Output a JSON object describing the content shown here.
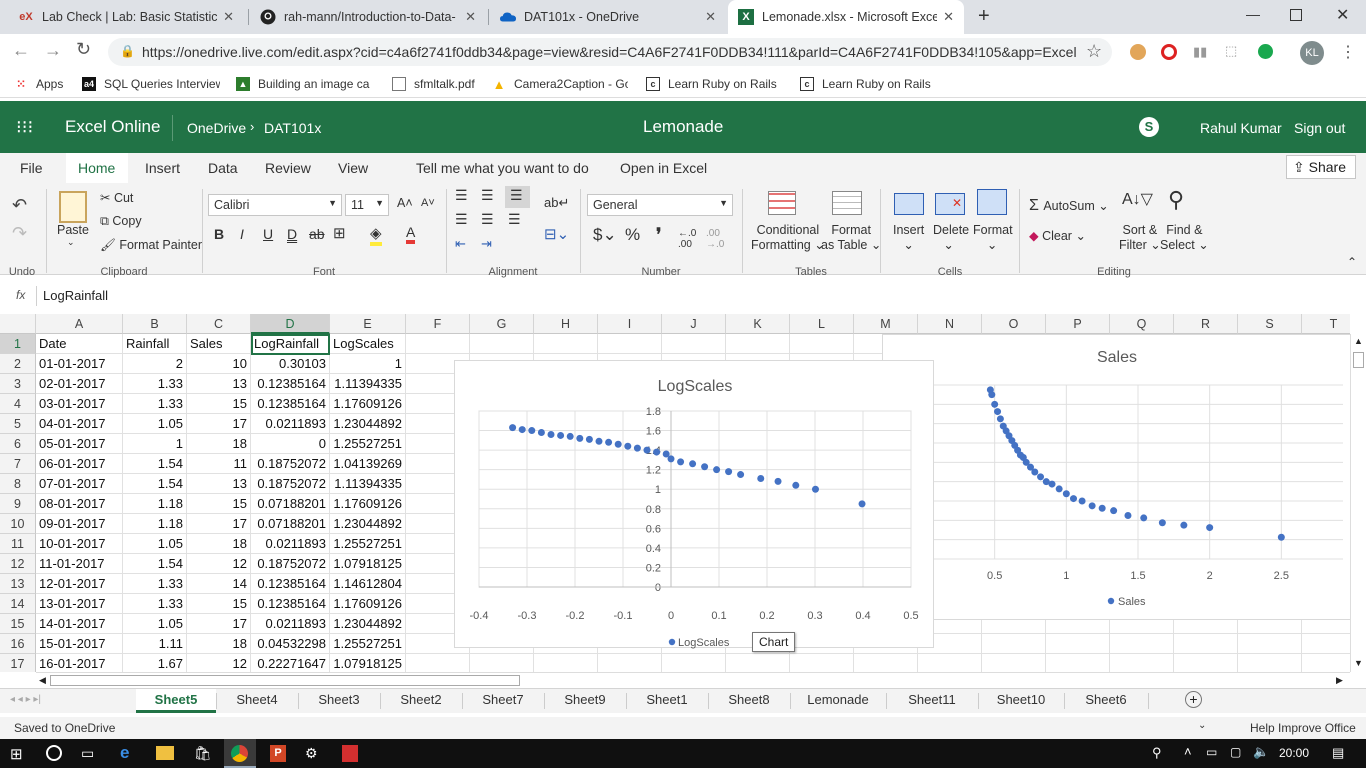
{
  "browser": {
    "tabs": [
      {
        "title": "Lab Check | Lab: Basic Statistical A",
        "icon": "edx-icon"
      },
      {
        "title": "rah-mann/Introduction-to-Data-",
        "icon": "github-icon"
      },
      {
        "title": "DAT101x - OneDrive",
        "icon": "onedrive-icon"
      },
      {
        "title": "Lemonade.xlsx - Microsoft Excel O",
        "icon": "excel-icon"
      }
    ],
    "url": "https://onedrive.live.com/edit.aspx?cid=c4a6f2741f0ddb34&page=view&resid=C4A6F2741F0DDB34!111&parId=C4A6F2741F0DDB34!105&app=Excel",
    "profile_initials": "KL",
    "bookmarks": [
      "Apps",
      "SQL Queries Interview",
      "Building an image ca",
      "sfmltalk.pdf",
      "Camera2Caption - Go",
      "Learn Ruby on Rails",
      "Learn Ruby on Rails"
    ]
  },
  "excel": {
    "app_name": "Excel Online",
    "breadcrumb_root": "OneDrive",
    "breadcrumb_folder": "DAT101x",
    "doc_title": "Lemonade",
    "user_name": "Rahul Kumar",
    "sign_out": "Sign out",
    "ribbon_tabs": [
      "File",
      "Home",
      "Insert",
      "Data",
      "Review",
      "View",
      "Tell me what you want to do",
      "Open in Excel"
    ],
    "share": "Share",
    "ribbon": {
      "cut": "Cut",
      "copy": "Copy",
      "format_painter": "Format Painter",
      "paste": "Paste",
      "font_name": "Calibri",
      "font_size": "11",
      "number_format": "General",
      "conditional": "Conditional",
      "formatting": "Formatting",
      "format": "Format",
      "as_table": "as Table",
      "insert": "Insert",
      "delete": "Delete",
      "format_cells": "Format",
      "autosum": "AutoSum",
      "clear": "Clear",
      "sort": "Sort &",
      "filter": "Filter",
      "find": "Find &",
      "select": "Select"
    },
    "groups": [
      "Undo",
      "Clipboard",
      "Font",
      "Alignment",
      "Number",
      "Tables",
      "Cells",
      "Editing"
    ],
    "formula_label": "fx",
    "formula_value": "LogRainfall",
    "columns": [
      "A",
      "B",
      "C",
      "D",
      "E",
      "F",
      "G",
      "H",
      "I",
      "J",
      "K",
      "L",
      "M",
      "N",
      "O",
      "P",
      "Q",
      "R",
      "S",
      "T"
    ],
    "rows": [
      [
        "Date",
        "Rainfall",
        "Sales",
        "LogRainfall",
        "LogScales"
      ],
      [
        "01-01-2017",
        "2",
        "10",
        "0.30103",
        "1"
      ],
      [
        "02-01-2017",
        "1.33",
        "13",
        "0.12385164",
        "1.11394335"
      ],
      [
        "03-01-2017",
        "1.33",
        "15",
        "0.12385164",
        "1.17609126"
      ],
      [
        "04-01-2017",
        "1.05",
        "17",
        "0.0211893",
        "1.23044892"
      ],
      [
        "05-01-2017",
        "1",
        "18",
        "0",
        "1.25527251"
      ],
      [
        "06-01-2017",
        "1.54",
        "11",
        "0.18752072",
        "1.04139269"
      ],
      [
        "07-01-2017",
        "1.54",
        "13",
        "0.18752072",
        "1.11394335"
      ],
      [
        "08-01-2017",
        "1.18",
        "15",
        "0.07188201",
        "1.17609126"
      ],
      [
        "09-01-2017",
        "1.18",
        "17",
        "0.07188201",
        "1.23044892"
      ],
      [
        "10-01-2017",
        "1.05",
        "18",
        "0.0211893",
        "1.25527251"
      ],
      [
        "11-01-2017",
        "1.54",
        "12",
        "0.18752072",
        "1.07918125"
      ],
      [
        "12-01-2017",
        "1.33",
        "14",
        "0.12385164",
        "1.14612804"
      ],
      [
        "13-01-2017",
        "1.33",
        "15",
        "0.12385164",
        "1.17609126"
      ],
      [
        "14-01-2017",
        "1.05",
        "17",
        "0.0211893",
        "1.23044892"
      ],
      [
        "15-01-2017",
        "1.11",
        "18",
        "0.04532298",
        "1.25527251"
      ],
      [
        "16-01-2017",
        "1.67",
        "12",
        "0.22271647",
        "1.07918125"
      ]
    ],
    "sheets": [
      "Sheet5",
      "Sheet4",
      "Sheet3",
      "Sheet2",
      "Sheet7",
      "Sheet9",
      "Sheet1",
      "Sheet8",
      "Lemonade",
      "Sheet11",
      "Sheet10",
      "Sheet6"
    ],
    "active_sheet": "Sheet5",
    "status_left": "Saved to OneDrive",
    "status_right": "Help Improve Office",
    "tooltip": "Chart"
  },
  "chart_data": [
    {
      "type": "scatter",
      "title": "LogScales",
      "legend": "LogScales",
      "legend_position": "bottom",
      "xlim": [
        -0.4,
        0.5
      ],
      "ylim": [
        0,
        1.8
      ],
      "xticks": [
        "-0.4",
        "-0.3",
        "-0.2",
        "-0.1",
        "0",
        "0.1",
        "0.2",
        "0.3",
        "0.4",
        "0.5"
      ],
      "yticks": [
        "0",
        "0.2",
        "0.4",
        "0.6",
        "0.8",
        "1",
        "1.2",
        "1.4",
        "1.6",
        "1.8"
      ],
      "x": [
        -0.33,
        -0.31,
        -0.29,
        -0.27,
        -0.25,
        -0.23,
        -0.21,
        -0.19,
        -0.17,
        -0.15,
        -0.13,
        -0.11,
        -0.09,
        -0.07,
        -0.05,
        -0.03,
        -0.01,
        0.0,
        0.02,
        0.045,
        0.07,
        0.095,
        0.12,
        0.145,
        0.187,
        0.223,
        0.26,
        0.301,
        0.398
      ],
      "y": [
        1.63,
        1.61,
        1.6,
        1.58,
        1.56,
        1.55,
        1.54,
        1.52,
        1.51,
        1.49,
        1.48,
        1.46,
        1.44,
        1.42,
        1.4,
        1.38,
        1.36,
        1.31,
        1.28,
        1.26,
        1.23,
        1.2,
        1.18,
        1.15,
        1.11,
        1.08,
        1.04,
        1.0,
        0.85
      ]
    },
    {
      "type": "scatter",
      "title": "Sales",
      "legend": "Sales",
      "legend_position": "bottom",
      "xlim": [
        0,
        3
      ],
      "xticks": [
        "0.5",
        "1",
        "1.5",
        "2",
        "2.5",
        "3"
      ],
      "x": [
        0.47,
        0.48,
        0.5,
        0.52,
        0.54,
        0.56,
        0.58,
        0.6,
        0.62,
        0.64,
        0.66,
        0.68,
        0.7,
        0.72,
        0.75,
        0.78,
        0.82,
        0.86,
        0.9,
        0.95,
        1.0,
        1.05,
        1.11,
        1.18,
        1.25,
        1.33,
        1.43,
        1.54,
        1.67,
        1.82,
        2.0,
        2.5
      ],
      "y": [
        43,
        42,
        40,
        38.5,
        37,
        35.5,
        34.5,
        33.5,
        32.5,
        31.5,
        30.5,
        29.5,
        29,
        28,
        27,
        26,
        25,
        24,
        23.5,
        22.5,
        21.5,
        20.5,
        20,
        19,
        18.5,
        18,
        17,
        16.5,
        15.5,
        15,
        14.5,
        12.5
      ]
    }
  ]
}
